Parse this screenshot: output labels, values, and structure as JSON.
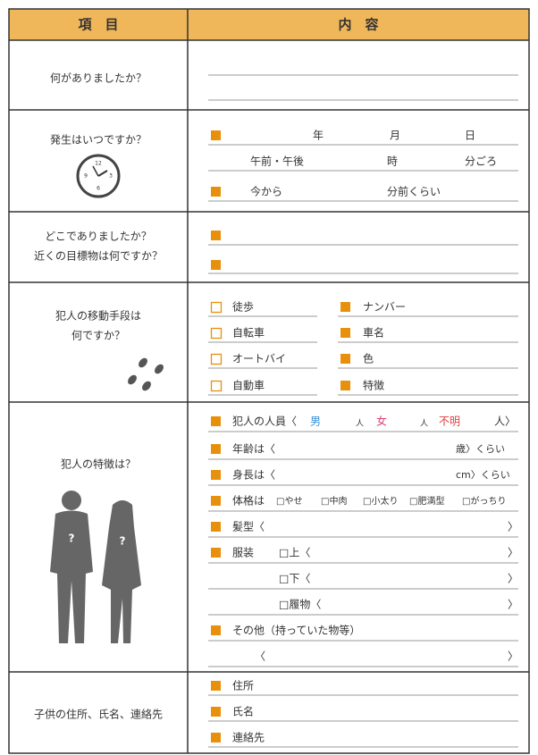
{
  "header": {
    "item": "項　目",
    "content": "内　容"
  },
  "rows": [
    {
      "label": [
        "何がありましたか？"
      ]
    },
    {
      "label": [
        "発生はいつですか？"
      ],
      "clock_numbers": [
        "12",
        "3",
        "6",
        "9"
      ],
      "fields": [
        "年",
        "月",
        "日",
        "午前・午後",
        "時",
        "分ごろ",
        "今から",
        "分前くらい"
      ]
    },
    {
      "label": [
        "どこでありましたか？",
        "近くの目標物は何ですか？"
      ]
    },
    {
      "label": [
        "犯人の移動手段は",
        "何ですか？"
      ],
      "fields": [
        "徒歩",
        "自転車",
        "オートバイ",
        "自動車",
        "ナンバー",
        "車名",
        "色",
        "特徴"
      ]
    },
    {
      "label": [
        "犯人の特徴は？"
      ],
      "figure_mark": "?",
      "fields": [
        "犯人の人員〈",
        "男",
        "人",
        "女",
        "人",
        "不明",
        "人〉",
        "年齢は〈",
        "歳〉くらい",
        "身長は〈",
        "cm〉くらい",
        "体格は",
        "□やせ",
        "□中肉",
        "□小太り",
        "□肥満型",
        "□がっちり",
        "髪型〈",
        "〉",
        "服装",
        "□上〈",
        "〉",
        "□下〈",
        "〉",
        "□履物〈",
        "〉",
        "その他（持っていた物等）",
        "〈",
        "〉"
      ]
    },
    {
      "label": [
        "子供の住所、氏名、連絡先"
      ],
      "fields": [
        "住所",
        "氏名",
        "連絡先"
      ]
    }
  ]
}
